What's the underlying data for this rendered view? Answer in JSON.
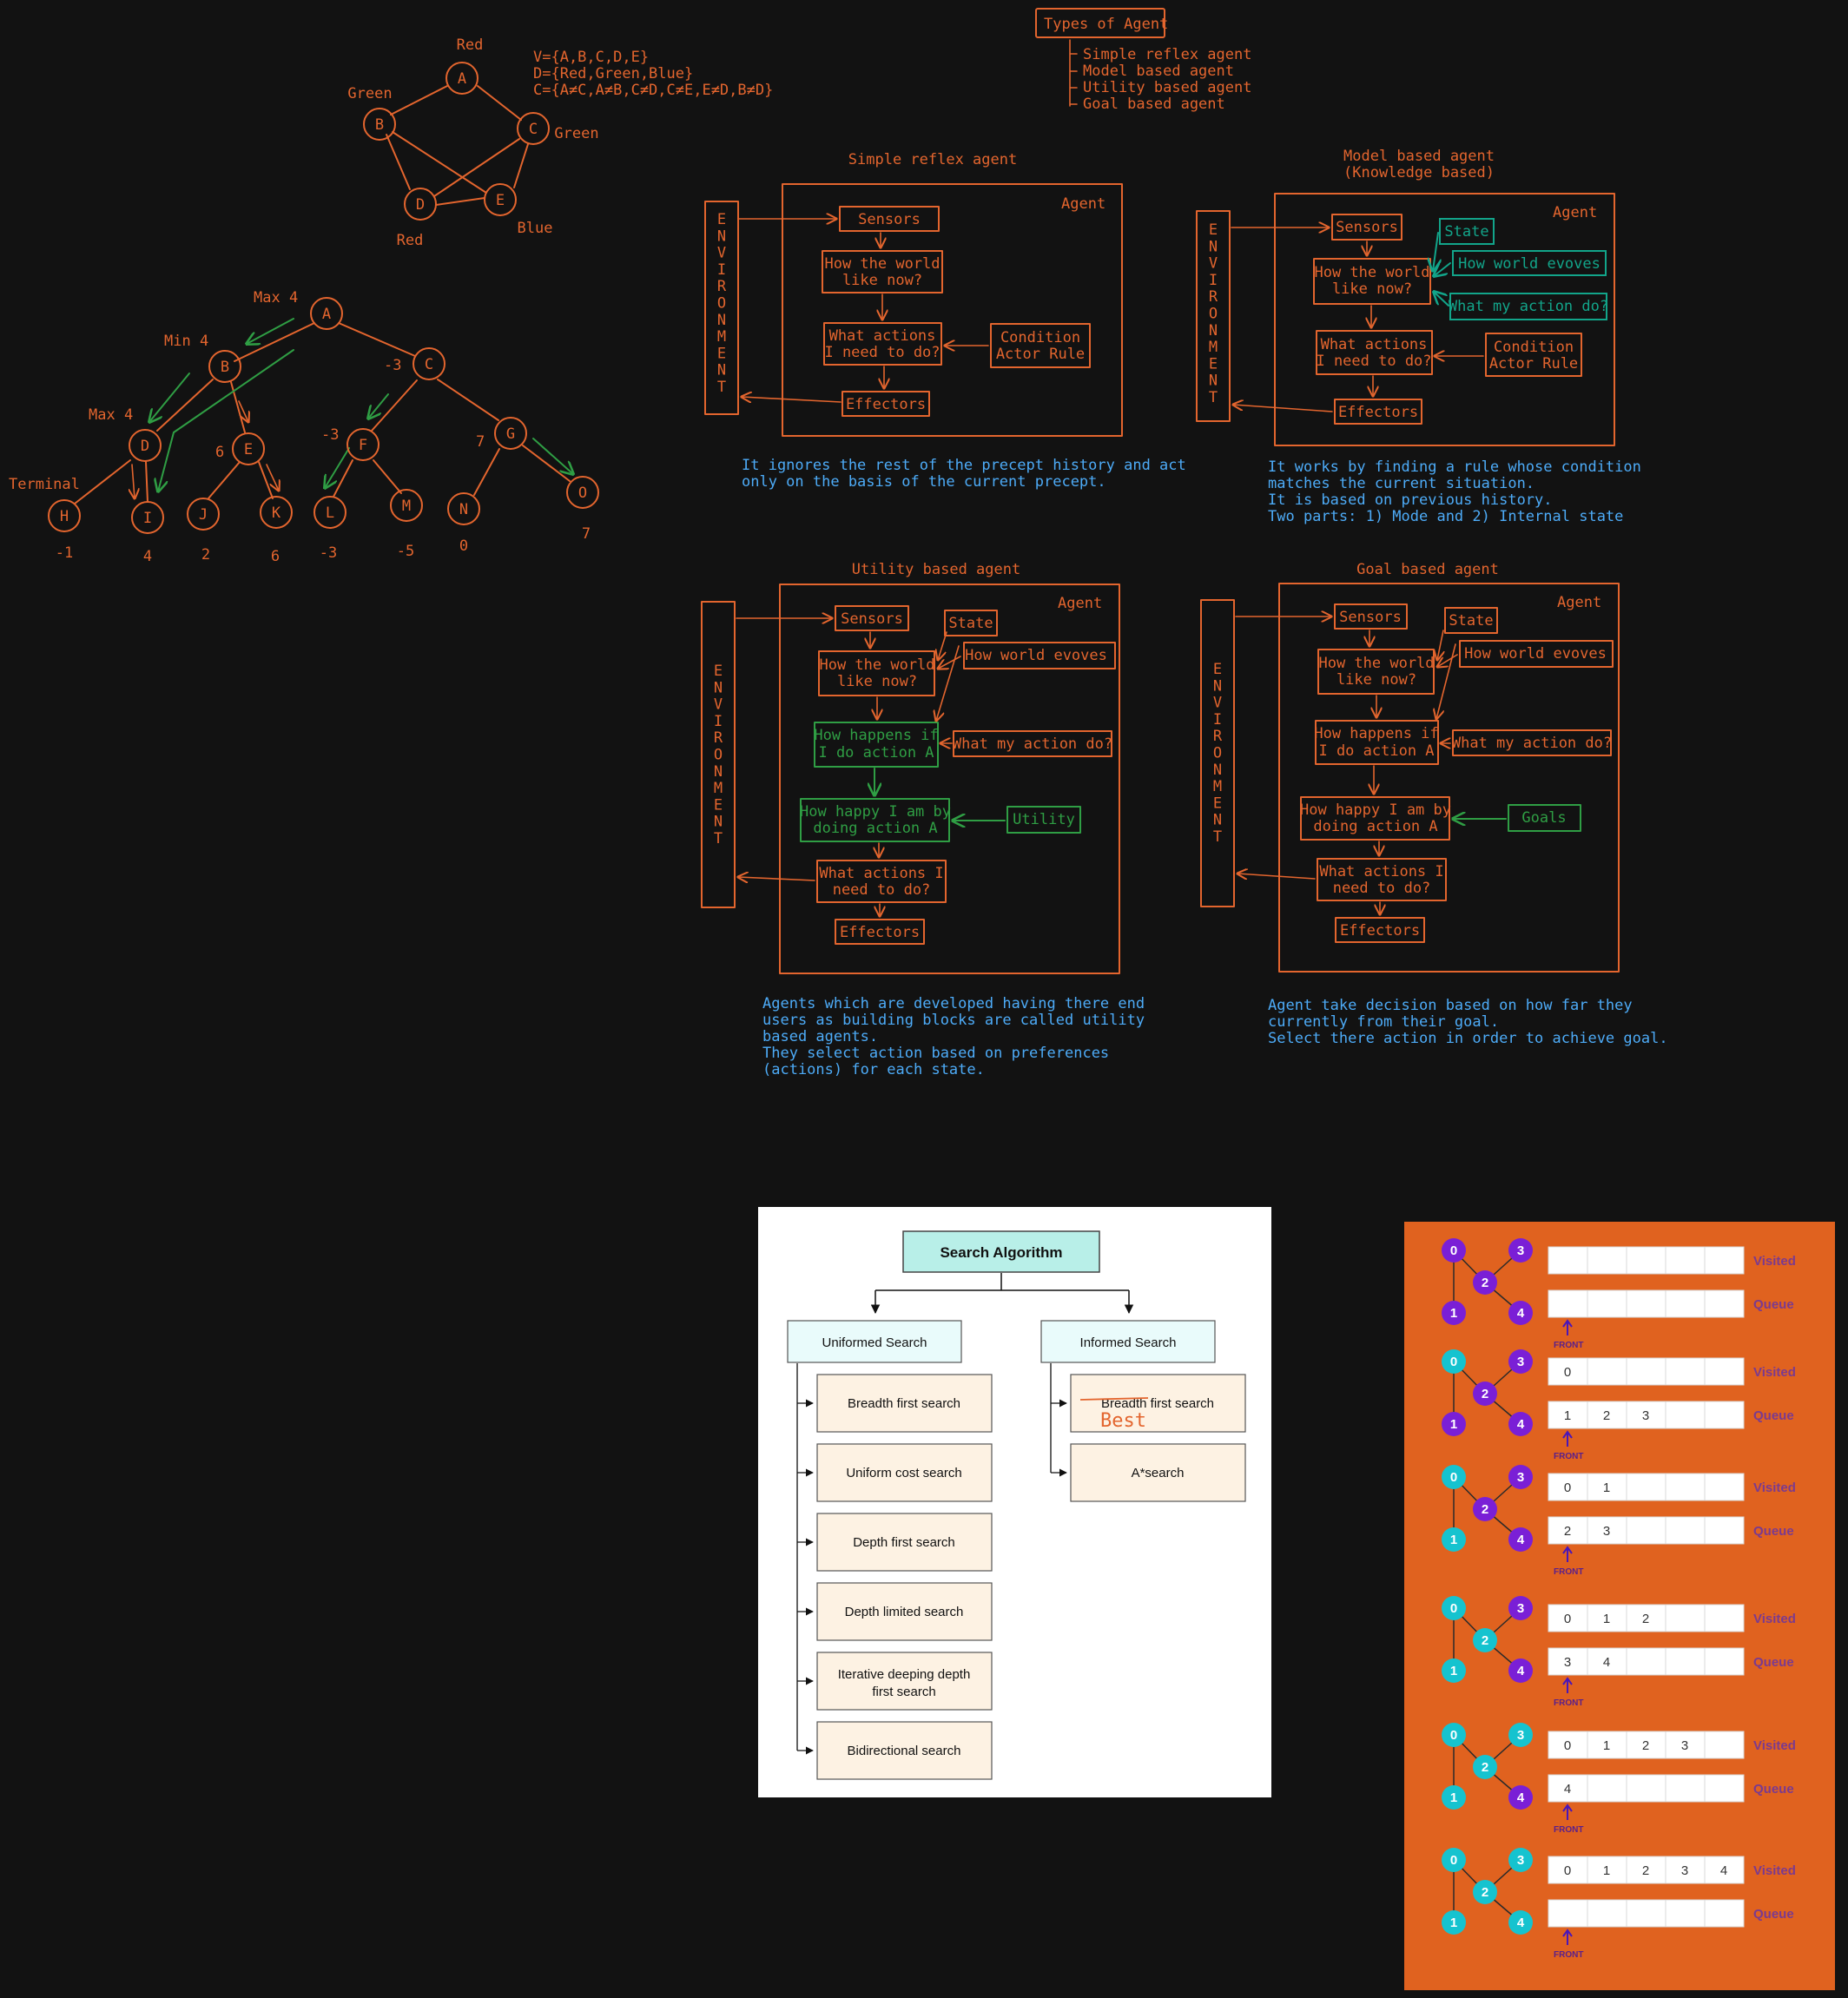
{
  "csp": {
    "nodes": {
      "A": "A",
      "B": "B",
      "C": "C",
      "D": "D",
      "E": "E"
    },
    "colors": {
      "A": "Red",
      "B": "Green",
      "C": "Green",
      "D": "Red",
      "E": "Blue"
    },
    "defs": [
      "V={A,B,C,D,E}",
      "D={Red,Green,Blue}",
      "C={A≠C,A≠B,C≠D,C≠E,E≠D,B≠D}"
    ]
  },
  "minimax": {
    "labels": {
      "maxA": "Max 4",
      "minB": "Min 4",
      "maxD": "Max 4",
      "terminal": "Terminal",
      "c": "-3",
      "e": "6",
      "f": "-3",
      "g": "7"
    },
    "nodes": [
      "A",
      "B",
      "C",
      "D",
      "E",
      "F",
      "G",
      "H",
      "I",
      "J",
      "K",
      "L",
      "M",
      "N",
      "O"
    ],
    "leaf_values": [
      "-1",
      "4",
      "2",
      "6",
      "-3",
      "-5",
      "0",
      "7"
    ]
  },
  "types": {
    "title": "Types of Agent",
    "items": [
      "Simple reflex agent",
      "Model based agent",
      "Utility based agent",
      "Goal based agent"
    ]
  },
  "simple_reflex": {
    "title": "Simple reflex agent",
    "agent": "Agent",
    "env": "ENVIRONMENT",
    "sensors": "Sensors",
    "world": [
      "How the world",
      "like now?"
    ],
    "actions": [
      "What actions",
      "I need to do?"
    ],
    "rule": [
      "Condition",
      "Actor Rule"
    ],
    "effectors": "Effectors",
    "desc": [
      "It ignores the rest of the precept history and act",
      "only on the basis of the current precept."
    ]
  },
  "model_based": {
    "title": [
      "Model based agent",
      "(Knowledge based)"
    ],
    "agent": "Agent",
    "env": "ENVIRONMENT",
    "sensors": "Sensors",
    "state": "State",
    "evolves": "How world evoves",
    "my_action": "What my action do?",
    "world": [
      "How the world",
      "like now?"
    ],
    "actions": [
      "What actions",
      "I need to do?"
    ],
    "rule": [
      "Condition",
      "Actor Rule"
    ],
    "effectors": "Effectors",
    "desc": [
      "It works by finding a rule whose condition",
      "matches the current situation.",
      "It is based on previous history.",
      "Two parts: 1) Mode and 2) Internal state"
    ]
  },
  "utility_based": {
    "title": "Utility based agent",
    "agent": "Agent",
    "env": "ENVIRONMENT",
    "sensors": "Sensors",
    "state": "State",
    "evolves": "How world evoves",
    "world": [
      "How the world",
      "like now?"
    ],
    "happens": [
      "How happens if",
      "I do action A"
    ],
    "my_action": "What my action do?",
    "happy": [
      "How happy I am by",
      "doing action A"
    ],
    "utility": "Utility",
    "actions": [
      "What actions I",
      "need to do?"
    ],
    "effectors": "Effectors",
    "desc": [
      "Agents which are developed having there end",
      "users as building blocks are called utility",
      "based agents.",
      "They select action based on preferences",
      "(actions) for each state."
    ]
  },
  "goal_based": {
    "title": "Goal based agent",
    "agent": "Agent",
    "env": "ENVIRONMENT",
    "sensors": "Sensors",
    "state": "State",
    "evolves": "How world evoves",
    "world": [
      "How the world",
      "like now?"
    ],
    "happens": [
      "How happens if",
      "I do action A"
    ],
    "my_action": "What my action do?",
    "happy": [
      "How happy I am by",
      "doing action A"
    ],
    "goals": "Goals",
    "actions": [
      "What actions I",
      "need to do?"
    ],
    "effectors": "Effectors",
    "desc": [
      "Agent take decision based on how far they",
      "currently from their goal.",
      "Select there action in order to achieve goal."
    ]
  },
  "search": {
    "root": "Search Algorithm",
    "uninformed": "Uniformed Search",
    "informed": "Informed Search",
    "uninformed_items": [
      "Breadth first search",
      "Uniform cost search",
      "Depth first search",
      "Depth limited search",
      "Iterative deeping depth first search",
      "Bidirectional search"
    ],
    "informed_items": [
      "Breadth first search",
      "A*search"
    ],
    "annotation": "Best"
  },
  "bfs": {
    "visited_label": "Visited",
    "queue_label": "Queue",
    "front_label": "FRONT",
    "node_labels": [
      "0",
      "1",
      "2",
      "3",
      "4"
    ],
    "colors": {
      "panel": "#e0621f",
      "unvisited": "#7a1fd6",
      "visited": "#15c3cf"
    },
    "steps": [
      {
        "visited": [],
        "queue": []
      },
      {
        "visited": [
          "0"
        ],
        "queue": [
          "1",
          "2",
          "3"
        ]
      },
      {
        "visited": [
          "0",
          "1"
        ],
        "queue": [
          "2",
          "3"
        ]
      },
      {
        "visited": [
          "0",
          "1",
          "2"
        ],
        "queue": [
          "3",
          "4"
        ]
      },
      {
        "visited": [
          "0",
          "1",
          "2",
          "3"
        ],
        "queue": [
          "4"
        ]
      },
      {
        "visited": [
          "0",
          "1",
          "2",
          "3",
          "4"
        ],
        "queue": []
      }
    ]
  }
}
